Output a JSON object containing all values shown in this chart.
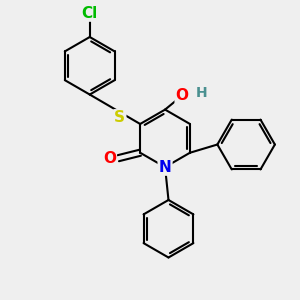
{
  "background_color": "#efefef",
  "atom_colors": {
    "Cl": "#00bb00",
    "S": "#cccc00",
    "O_carbonyl": "#ff0000",
    "O_hydroxy": "#ff0000",
    "N": "#0000ee",
    "H": "#4a9090",
    "C": "#000000"
  },
  "bond_color": "#000000",
  "bond_width": 1.5,
  "font_size_atom": 11,
  "figure_size": [
    3.0,
    3.0
  ],
  "dpi": 100,
  "xlim": [
    -2.0,
    2.2
  ],
  "ylim": [
    -1.8,
    2.5
  ]
}
